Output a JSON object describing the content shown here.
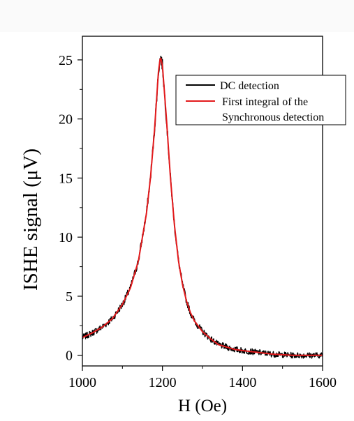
{
  "chart_data": {
    "type": "line",
    "xlabel": "H (Oe)",
    "ylabel": "ISHE signal (μV)",
    "xlim": [
      1000,
      1600
    ],
    "ylim": [
      -0.9,
      27
    ],
    "x_ticks": [
      "1000",
      "1200",
      "1400",
      "1600"
    ],
    "y_ticks": [
      "0",
      "5",
      "10",
      "15",
      "20",
      "25"
    ],
    "x_tick_values": [
      1000,
      1200,
      1400,
      1600
    ],
    "y_tick_values": [
      0,
      5,
      10,
      15,
      20,
      25
    ],
    "grid": false,
    "legend_position": "top-right",
    "series": [
      {
        "name": "DC detection",
        "color": "#000000",
        "style": "noisy",
        "x": [
          1000,
          1025,
          1050,
          1075,
          1100,
          1120,
          1140,
          1160,
          1170,
          1180,
          1190,
          1195,
          1200,
          1210,
          1220,
          1230,
          1240,
          1250,
          1260,
          1270,
          1280,
          1300,
          1320,
          1340,
          1360,
          1380,
          1400,
          1425,
          1450,
          1475,
          1500,
          1525,
          1550,
          1575,
          1600
        ],
        "y": [
          1.5,
          1.9,
          2.4,
          3.1,
          4.3,
          5.7,
          8.0,
          12.0,
          15.0,
          19.0,
          24.0,
          25.3,
          24.5,
          20.0,
          15.0,
          11.0,
          8.0,
          6.0,
          4.6,
          3.6,
          2.9,
          2.0,
          1.4,
          0.9,
          0.7,
          0.5,
          0.4,
          0.3,
          0.2,
          0.1,
          0.05,
          0.0,
          0.0,
          0.0,
          0.0
        ]
      },
      {
        "name": "First integral of  the Synchronous detection",
        "legend_lines": [
          "First integral of  the",
          "Synchronous detection"
        ],
        "color": "#e31a1c",
        "style": "smooth",
        "x": [
          1000,
          1025,
          1050,
          1075,
          1100,
          1120,
          1140,
          1160,
          1170,
          1180,
          1190,
          1195,
          1200,
          1210,
          1220,
          1230,
          1240,
          1250,
          1260,
          1270,
          1280,
          1300,
          1320,
          1340,
          1360,
          1380,
          1400,
          1425,
          1450,
          1475,
          1500,
          1525,
          1550,
          1575,
          1600
        ],
        "y": [
          1.5,
          1.9,
          2.4,
          3.1,
          4.3,
          5.7,
          8.0,
          12.0,
          15.0,
          19.0,
          24.0,
          25.3,
          24.5,
          20.0,
          15.0,
          11.0,
          8.0,
          6.0,
          4.6,
          3.6,
          2.9,
          2.0,
          1.4,
          0.9,
          0.7,
          0.5,
          0.4,
          0.3,
          0.2,
          0.1,
          0.05,
          0.0,
          0.0,
          0.0,
          0.0
        ]
      }
    ]
  }
}
